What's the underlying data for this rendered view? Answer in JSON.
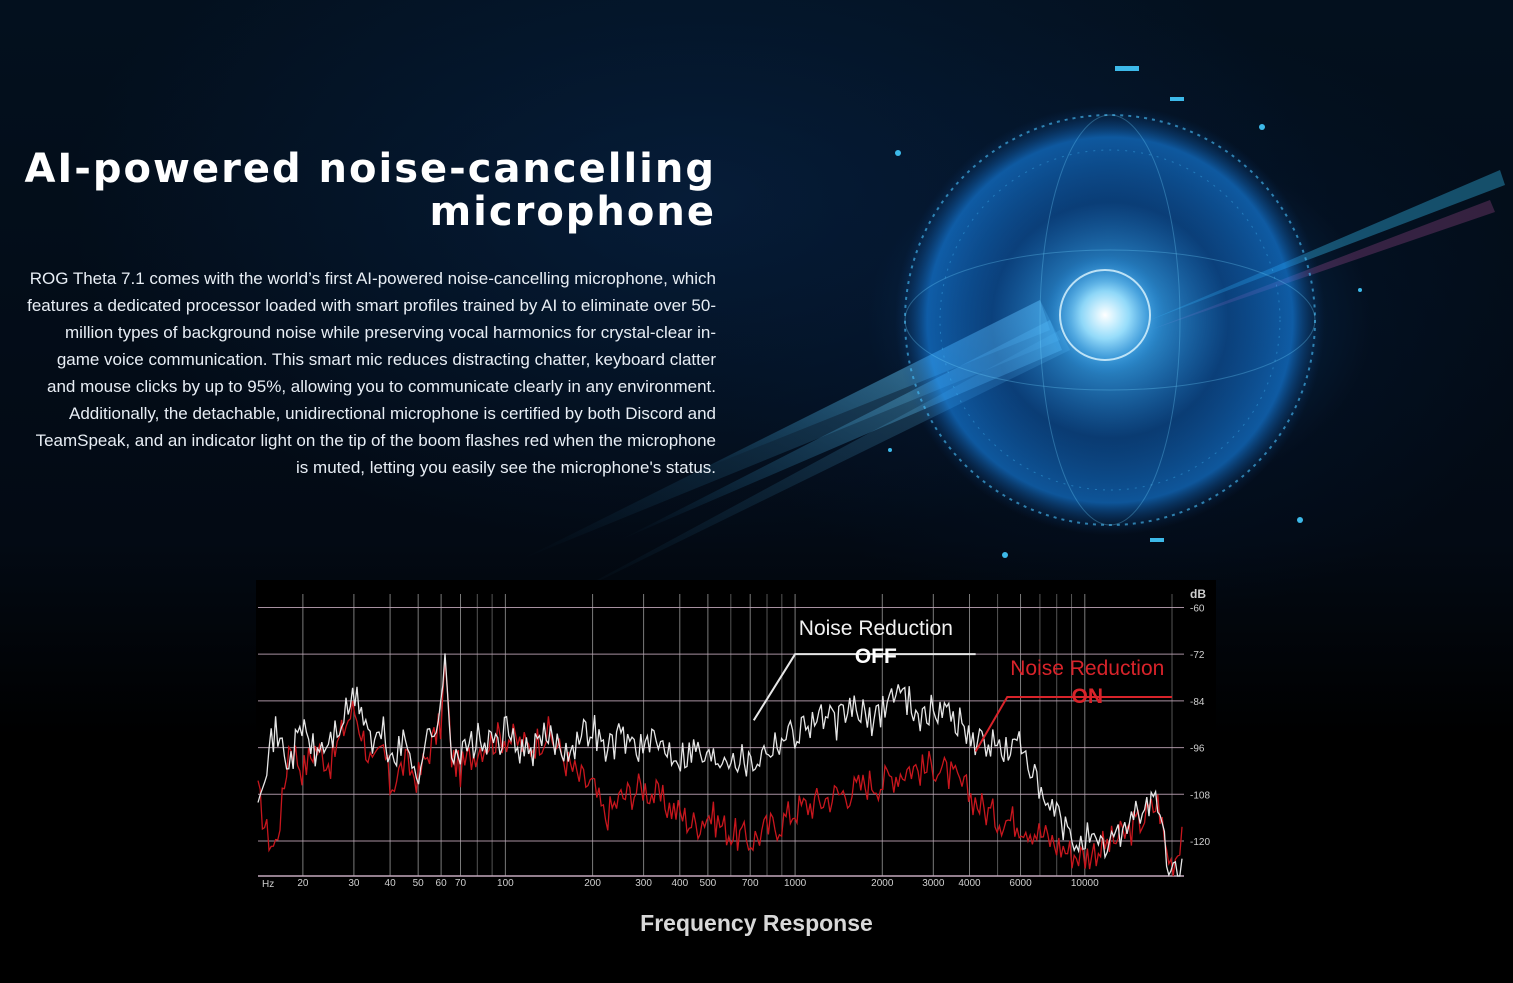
{
  "hero": {
    "title_line1": "AI-powered noise-cancelling",
    "title_line2": "microphone",
    "description": "ROG Theta 7.1 comes with the world’s first AI-powered noise-cancelling microphone, which features a dedicated processor loaded with smart profiles trained by AI to eliminate over 50-million types of background noise while preserving vocal harmonics for crystal-clear in-game voice communication. This smart mic reduces distracting chatter, keyboard clatter and mouse clicks by up to 95%, allowing you to communicate clearly in any environment. Additionally, the detachable, unidirectional microphone is certified by both Discord and TeamSpeak, and an indicator light on the tip of the boom flashes red when the microphone is muted, letting you easily see the microphone's status."
  },
  "colors": {
    "accent_red": "#d8232a",
    "trace_off": "#e6e6e6",
    "trace_on": "#c8161d",
    "grid": "#c4a9bd",
    "glow_blue": "#2fb8ff"
  },
  "chart_data": {
    "type": "line",
    "title": "Frequency Response",
    "xlabel": "Hz",
    "ylabel": "dB",
    "x_scale": "log",
    "xlim": [
      14,
      22000
    ],
    "ylim": [
      -129,
      -55
    ],
    "x_ticks": [
      20,
      30,
      40,
      50,
      60,
      70,
      100,
      200,
      300,
      400,
      500,
      700,
      1000,
      2000,
      3000,
      4000,
      6000,
      10000
    ],
    "y_ticks": [
      -60,
      -72,
      -84,
      -96,
      -108,
      -120
    ],
    "grid": true,
    "series": [
      {
        "name": "Noise Reduction OFF",
        "label_line1": "Noise Reduction",
        "label_line2": "OFF",
        "color": "#e6e6e6",
        "points": [
          [
            14,
            -106
          ],
          [
            16,
            -92
          ],
          [
            18,
            -100
          ],
          [
            20,
            -90
          ],
          [
            22,
            -98
          ],
          [
            25,
            -94
          ],
          [
            28,
            -88
          ],
          [
            30,
            -83
          ],
          [
            32,
            -86
          ],
          [
            35,
            -96
          ],
          [
            38,
            -92
          ],
          [
            40,
            -99
          ],
          [
            45,
            -95
          ],
          [
            50,
            -102
          ],
          [
            55,
            -92
          ],
          [
            60,
            -88
          ],
          [
            62,
            -72
          ],
          [
            65,
            -95
          ],
          [
            70,
            -98
          ],
          [
            80,
            -94
          ],
          [
            90,
            -96
          ],
          [
            100,
            -92
          ],
          [
            120,
            -98
          ],
          [
            140,
            -93
          ],
          [
            160,
            -96
          ],
          [
            180,
            -94
          ],
          [
            200,
            -90
          ],
          [
            220,
            -97
          ],
          [
            250,
            -93
          ],
          [
            300,
            -96
          ],
          [
            350,
            -95
          ],
          [
            400,
            -98
          ],
          [
            450,
            -96
          ],
          [
            500,
            -99
          ],
          [
            600,
            -97
          ],
          [
            700,
            -100
          ],
          [
            800,
            -96
          ],
          [
            900,
            -93
          ],
          [
            1000,
            -92
          ],
          [
            1200,
            -88
          ],
          [
            1400,
            -90
          ],
          [
            1600,
            -85
          ],
          [
            1800,
            -90
          ],
          [
            2000,
            -86
          ],
          [
            2200,
            -81
          ],
          [
            2500,
            -84
          ],
          [
            2800,
            -89
          ],
          [
            3000,
            -86
          ],
          [
            3500,
            -87
          ],
          [
            4000,
            -93
          ],
          [
            4500,
            -95
          ],
          [
            5000,
            -96
          ],
          [
            5500,
            -97
          ],
          [
            6000,
            -95
          ],
          [
            6500,
            -100
          ],
          [
            7000,
            -110
          ],
          [
            8000,
            -113
          ],
          [
            9000,
            -121
          ],
          [
            10000,
            -118
          ],
          [
            11000,
            -123
          ],
          [
            12000,
            -121
          ],
          [
            14000,
            -115
          ],
          [
            16000,
            -111
          ],
          [
            18000,
            -110
          ],
          [
            19000,
            -124
          ],
          [
            20000,
            -128
          ],
          [
            22000,
            -127
          ]
        ]
      },
      {
        "name": "Noise Reduction ON",
        "label_line1": "Noise Reduction",
        "label_line2": "ON",
        "color": "#c8161d",
        "points": [
          [
            14,
            -108
          ],
          [
            15,
            -118
          ],
          [
            16,
            -122
          ],
          [
            17,
            -110
          ],
          [
            18,
            -94
          ],
          [
            20,
            -102
          ],
          [
            22,
            -96
          ],
          [
            25,
            -100
          ],
          [
            28,
            -90
          ],
          [
            30,
            -86
          ],
          [
            32,
            -92
          ],
          [
            35,
            -102
          ],
          [
            38,
            -96
          ],
          [
            40,
            -106
          ],
          [
            45,
            -100
          ],
          [
            50,
            -104
          ],
          [
            55,
            -96
          ],
          [
            60,
            -90
          ],
          [
            62,
            -74
          ],
          [
            65,
            -98
          ],
          [
            70,
            -102
          ],
          [
            80,
            -96
          ],
          [
            90,
            -94
          ],
          [
            100,
            -93
          ],
          [
            120,
            -96
          ],
          [
            140,
            -92
          ],
          [
            160,
            -99
          ],
          [
            180,
            -104
          ],
          [
            200,
            -106
          ],
          [
            220,
            -114
          ],
          [
            250,
            -109
          ],
          [
            300,
            -106
          ],
          [
            350,
            -110
          ],
          [
            400,
            -113
          ],
          [
            450,
            -116
          ],
          [
            500,
            -113
          ],
          [
            600,
            -118
          ],
          [
            700,
            -120
          ],
          [
            800,
            -117
          ],
          [
            900,
            -115
          ],
          [
            1000,
            -112
          ],
          [
            1200,
            -110
          ],
          [
            1400,
            -108
          ],
          [
            1600,
            -107
          ],
          [
            1800,
            -105
          ],
          [
            2000,
            -105
          ],
          [
            2200,
            -103
          ],
          [
            2500,
            -101
          ],
          [
            2800,
            -102
          ],
          [
            3000,
            -100
          ],
          [
            3500,
            -104
          ],
          [
            4000,
            -108
          ],
          [
            4500,
            -112
          ],
          [
            5000,
            -114
          ],
          [
            6000,
            -115
          ],
          [
            7000,
            -118
          ],
          [
            8000,
            -121
          ],
          [
            9000,
            -123
          ],
          [
            10000,
            -124
          ],
          [
            11000,
            -122
          ],
          [
            12000,
            -121
          ],
          [
            14000,
            -118
          ],
          [
            16000,
            -114
          ],
          [
            18000,
            -110
          ],
          [
            19000,
            -122
          ],
          [
            20000,
            -126
          ],
          [
            21000,
            -122
          ],
          [
            22000,
            -113
          ]
        ]
      }
    ]
  }
}
